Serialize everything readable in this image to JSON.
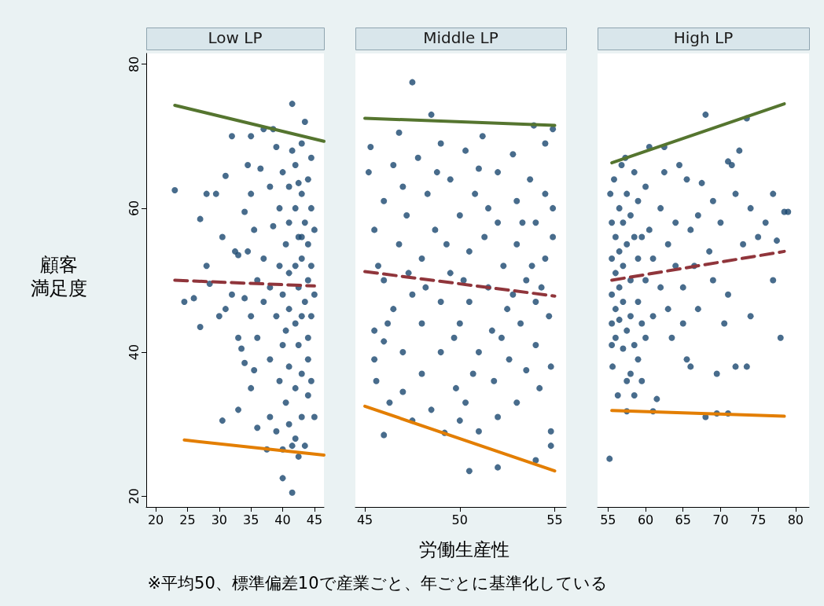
{
  "chart_data": [
    {
      "type": "scatter",
      "title": "Low LP",
      "ylabel": "顧客満足度",
      "xlim": [
        18.5,
        46.5
      ],
      "xticks": [
        20,
        25,
        30,
        35,
        40,
        45
      ],
      "ylim": [
        18.5,
        81.5
      ],
      "yticks": [
        20,
        40,
        60,
        80
      ],
      "grid": false,
      "series": [
        {
          "type": "scatter",
          "color": "#1a476f",
          "marker": "circle",
          "x": [
            23,
            24.5,
            26,
            27,
            27,
            28,
            28.5,
            28,
            29.5,
            30,
            30.5,
            30.5,
            31,
            31,
            32,
            32,
            32.5,
            33,
            33,
            33,
            33.5,
            34,
            34,
            34,
            34.5,
            34.5,
            35,
            35,
            35,
            35,
            35.5,
            35.5,
            36,
            36,
            36,
            36.5,
            37,
            37,
            37,
            37.5,
            38,
            38,
            38,
            38,
            38.5,
            38.5,
            39,
            39,
            39,
            39.5,
            39.5,
            39.5,
            40,
            40,
            40,
            40,
            40,
            40.5,
            40.5,
            41,
            41,
            41,
            41,
            41,
            41.5,
            41.5,
            41.5,
            42,
            42,
            42,
            42,
            42,
            42.5,
            42.5,
            42.5,
            42.5,
            43,
            43,
            43,
            43,
            43,
            43,
            43.5,
            43.5,
            43.5,
            43.5,
            44,
            44,
            44,
            44,
            44,
            44,
            44.5,
            44.5,
            44.5,
            44.5,
            44.5,
            45,
            45,
            45,
            41.5,
            42.5,
            40.5,
            41,
            43,
            42
          ],
          "values": [
            62.5,
            47,
            47.5,
            43.5,
            58.5,
            52,
            49.5,
            62,
            62,
            45,
            30.5,
            56,
            64.5,
            46,
            70,
            48,
            54,
            53.5,
            42,
            32,
            40.5,
            38.5,
            47.5,
            59.5,
            54,
            66,
            70,
            62,
            45,
            35,
            57,
            37.5,
            50,
            42,
            29.5,
            65.5,
            71,
            47,
            53,
            26.5,
            63,
            49,
            39,
            31,
            71,
            57.5,
            45,
            29,
            68.5,
            60,
            52,
            36,
            26.5,
            22.5,
            65,
            48,
            41,
            55,
            33,
            63,
            58,
            46,
            38,
            30,
            74.5,
            20.5,
            27,
            52,
            60,
            44,
            35,
            66,
            25.5,
            56,
            49,
            41,
            69,
            62,
            53,
            45,
            37,
            31,
            72,
            58,
            47,
            27,
            64,
            55,
            50,
            42,
            34,
            39,
            67,
            60,
            52,
            45,
            36,
            57,
            48,
            31,
            68,
            63.5,
            43,
            51,
            56,
            28
          ]
        },
        {
          "type": "line",
          "color": "#55752f",
          "marker": "none",
          "line_style": "solid",
          "x": [
            23,
            46.5
          ],
          "values": [
            74.3,
            69.3
          ]
        },
        {
          "type": "line",
          "color": "#90353b",
          "marker": "none",
          "line_style": "dashed",
          "x": [
            23,
            45
          ],
          "values": [
            50,
            49.2
          ]
        },
        {
          "type": "line",
          "color": "#e37e00",
          "marker": "none",
          "line_style": "solid",
          "x": [
            24.5,
            46.5
          ],
          "values": [
            27.8,
            25.7
          ]
        }
      ]
    },
    {
      "type": "scatter",
      "title": "Middle LP",
      "xlabel": "労働生産性",
      "annotations": [
        "※平均50、標準偏差10で産業ごと、年ごとに基準化している"
      ],
      "xlim": [
        44.5,
        55.6
      ],
      "xticks": [
        45,
        50,
        55
      ],
      "ylim": [
        18.5,
        81.5
      ],
      "yticks": [
        20,
        40,
        60,
        80
      ],
      "tick_labels": "x",
      "grid": false,
      "series": [
        {
          "type": "scatter",
          "color": "#1a476f",
          "marker": "circle",
          "x": [
            47.5,
            48.5,
            50.5,
            52,
            46,
            54,
            54.8,
            54.8,
            45.3,
            45.2,
            45.5,
            45.5,
            45.5,
            45.6,
            46,
            46,
            46.3,
            46.5,
            46.5,
            46.8,
            47,
            47,
            47,
            47.2,
            47.5,
            47.5,
            47.8,
            48,
            48,
            48,
            48.3,
            48.5,
            48.7,
            49,
            49,
            49,
            49.2,
            49.5,
            49.5,
            49.8,
            50,
            50,
            50.3,
            50.3,
            50.5,
            50.5,
            50.8,
            51,
            51,
            51.2,
            51.3,
            51.5,
            51.7,
            51.8,
            52,
            52,
            52,
            52.3,
            52.5,
            52.6,
            52.8,
            53,
            53,
            53,
            53.2,
            53.5,
            53.5,
            53.7,
            53.9,
            54,
            54,
            54,
            54.2,
            54.5,
            54.5,
            54.5,
            54.7,
            54.8,
            54.9,
            54.9,
            54.9,
            45.7,
            46.2,
            46.8,
            47.3,
            48.2,
            48.8,
            49.3,
            49.7,
            50.2,
            50.7,
            51.5,
            52.2,
            52.8,
            53.3,
            53.8,
            54.3,
            46,
            51,
            50
          ],
          "values": [
            77.5,
            73,
            23.5,
            24,
            28.5,
            25,
            27,
            29,
            68.5,
            65,
            57,
            43,
            39,
            36,
            61,
            50,
            33,
            66,
            46,
            55,
            63,
            40,
            34.5,
            59,
            48,
            30.5,
            67,
            53,
            44,
            37,
            62,
            32,
            57,
            69,
            47,
            40,
            28.8,
            64,
            51,
            35,
            59,
            44,
            68,
            33,
            54,
            47,
            62,
            40,
            29,
            70,
            56,
            49,
            43,
            36,
            65,
            58,
            31,
            52,
            46,
            39,
            67.5,
            61,
            55,
            33,
            44,
            50,
            37.5,
            64,
            71.5,
            58,
            47,
            41,
            35,
            69,
            53,
            62,
            45,
            38,
            56,
            60,
            71,
            52,
            44,
            70.5,
            51,
            49,
            65,
            55,
            42,
            50,
            37,
            60,
            42,
            48,
            58,
            52,
            49,
            41.5,
            65.5,
            30.5
          ]
        },
        {
          "type": "line",
          "color": "#55752f",
          "marker": "none",
          "line_style": "solid",
          "x": [
            45,
            55
          ],
          "values": [
            72.5,
            71.5
          ]
        },
        {
          "type": "line",
          "color": "#90353b",
          "marker": "none",
          "line_style": "dashed",
          "x": [
            45,
            55
          ],
          "values": [
            51.2,
            47.8
          ]
        },
        {
          "type": "line",
          "color": "#e37e00",
          "marker": "none",
          "line_style": "solid",
          "x": [
            45,
            55
          ],
          "values": [
            32.5,
            23.5
          ]
        }
      ]
    },
    {
      "type": "scatter",
      "title": "High LP",
      "xlim": [
        53.6,
        81.8
      ],
      "xticks": [
        55,
        60,
        65,
        70,
        75,
        80
      ],
      "ylim": [
        18.5,
        81.5
      ],
      "yticks": [
        20,
        40,
        60,
        80
      ],
      "tick_labels": "x",
      "grid": false,
      "series": [
        {
          "type": "scatter",
          "color": "#1a476f",
          "marker": "circle",
          "x": [
            55.2,
            55.3,
            55.5,
            55.5,
            55.5,
            55.5,
            55.5,
            55.6,
            55.8,
            56,
            56,
            56,
            56,
            56.3,
            56.5,
            56.5,
            56.5,
            56.5,
            56.8,
            57,
            57,
            57,
            57,
            57.3,
            57.5,
            57.5,
            57.5,
            57.5,
            58,
            58,
            58,
            58,
            58.5,
            58.5,
            58.5,
            58.5,
            59,
            59,
            59,
            59,
            59.5,
            59.5,
            60,
            60,
            60,
            60.5,
            60.5,
            61,
            61,
            61.5,
            62,
            62,
            62.5,
            62.5,
            63,
            63,
            63.5,
            64,
            64,
            64.5,
            65,
            65,
            65.5,
            65.5,
            66,
            66,
            66.5,
            67,
            67,
            67.5,
            68,
            68,
            68.5,
            69,
            69,
            69.5,
            69.5,
            70,
            70.5,
            71,
            71,
            71,
            71.5,
            72,
            72,
            72.5,
            73,
            73.5,
            73.5,
            74,
            74,
            75,
            76,
            77,
            77,
            77.5,
            78,
            78.5,
            79,
            57.5,
            59.5,
            61
          ],
          "values": [
            25.2,
            62,
            58,
            53,
            48,
            44,
            41,
            38,
            64,
            56,
            51,
            46,
            42,
            34,
            60,
            54,
            49,
            44.5,
            66,
            58,
            52,
            47,
            40.5,
            67,
            62,
            55,
            43,
            36,
            59,
            50,
            45,
            37,
            65,
            56,
            41,
            34,
            61,
            53,
            47,
            39,
            56,
            44,
            63,
            50,
            42,
            68.5,
            57,
            45,
            53,
            33.5,
            60,
            49,
            68.5,
            65,
            55,
            46,
            42,
            58,
            52,
            66,
            49,
            44,
            64,
            39,
            57,
            38,
            52,
            59,
            46,
            63.5,
            31,
            73,
            54,
            50,
            61,
            37,
            31.5,
            58,
            44,
            48,
            66.5,
            31.5,
            66,
            38,
            62,
            68,
            55,
            38,
            72.5,
            45,
            60,
            56,
            58,
            62,
            50,
            55.5,
            42,
            59.5,
            59.5,
            31.8,
            36,
            31.8
          ]
        },
        {
          "type": "line",
          "color": "#55752f",
          "marker": "none",
          "line_style": "solid",
          "x": [
            55.5,
            78.5
          ],
          "values": [
            66.3,
            74.5
          ]
        },
        {
          "type": "line",
          "color": "#90353b",
          "marker": "none",
          "line_style": "dashed",
          "x": [
            55.5,
            78.5
          ],
          "values": [
            50,
            54
          ]
        },
        {
          "type": "line",
          "color": "#e37e00",
          "marker": "none",
          "line_style": "solid",
          "x": [
            55.5,
            78.5
          ],
          "values": [
            31.9,
            31.1
          ]
        }
      ]
    }
  ]
}
